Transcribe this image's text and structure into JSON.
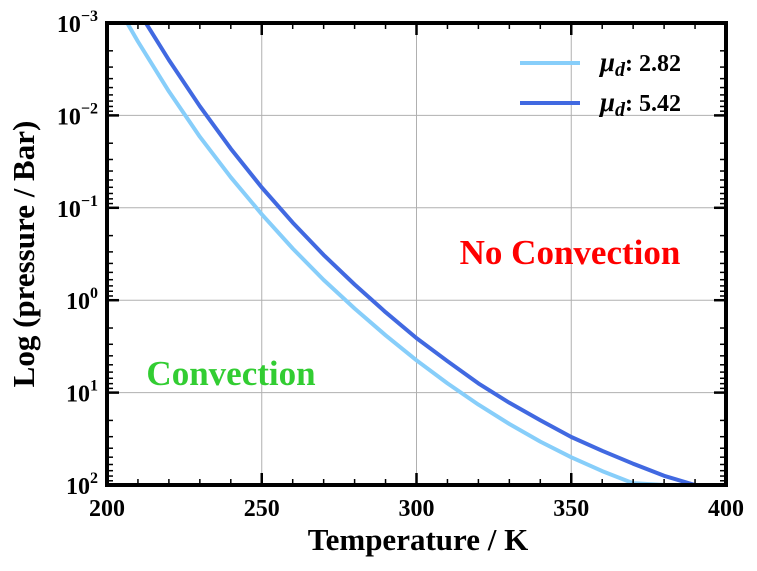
{
  "chart_data": {
    "type": "line",
    "title": "",
    "xlabel": "Temperature / K",
    "ylabel": "Log (pressure / Bar)",
    "xlim": [
      200,
      400
    ],
    "ylim_log10": [
      -3,
      2
    ],
    "y_axis_inverted": true,
    "grid": true,
    "x_ticks": [
      {
        "value": 200,
        "label": "200"
      },
      {
        "value": 250,
        "label": "250"
      },
      {
        "value": 300,
        "label": "300"
      },
      {
        "value": 350,
        "label": "350"
      },
      {
        "value": 400,
        "label": "400"
      }
    ],
    "y_ticks": [
      {
        "log": -3,
        "base": "10",
        "exp": "−3"
      },
      {
        "log": -2,
        "base": "10",
        "exp": "−2"
      },
      {
        "log": -1,
        "base": "10",
        "exp": "−1"
      },
      {
        "log": 0,
        "base": "10",
        "exp": "0"
      },
      {
        "log": 1,
        "base": "10",
        "exp": "1"
      },
      {
        "log": 2,
        "base": "10",
        "exp": "2"
      }
    ],
    "series": [
      {
        "name": "μ_d: 2.82",
        "legend_symbol": "μ",
        "legend_sub": "d",
        "legend_value": ": 2.82",
        "color": "#87CEFA",
        "x": [
          206,
          210,
          220,
          230,
          240,
          250,
          260,
          270,
          280,
          290,
          300,
          310,
          320,
          330,
          340,
          350,
          360,
          370,
          380
        ],
        "log_pressure": [
          -3.03,
          -2.8,
          -2.26,
          -1.77,
          -1.33,
          -0.93,
          -0.56,
          -0.22,
          0.09,
          0.38,
          0.65,
          0.9,
          1.13,
          1.34,
          1.53,
          1.7,
          1.85,
          1.98,
          2.0
        ]
      },
      {
        "name": "μ_d: 5.42",
        "legend_symbol": "μ",
        "legend_sub": "d",
        "legend_value": ": 5.42",
        "color": "#4169E1",
        "x": [
          212,
          220,
          230,
          240,
          250,
          260,
          270,
          280,
          290,
          300,
          310,
          320,
          330,
          340,
          350,
          360,
          370,
          380,
          390,
          400
        ],
        "log_pressure": [
          -3.03,
          -2.6,
          -2.1,
          -1.64,
          -1.22,
          -0.84,
          -0.49,
          -0.17,
          0.13,
          0.41,
          0.66,
          0.9,
          1.11,
          1.3,
          1.48,
          1.63,
          1.77,
          1.9,
          2.0,
          2.0
        ]
      }
    ],
    "legend_position": "top-right",
    "annotations": [
      {
        "text": "No Convection",
        "color": "#FF0000"
      },
      {
        "text": "Convection",
        "color": "#32CD32"
      }
    ]
  }
}
